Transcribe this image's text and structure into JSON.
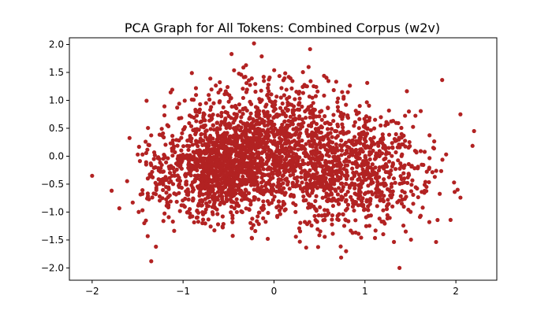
{
  "chart_data": {
    "type": "scatter",
    "title": "PCA Graph for All Tokens: Combined Corpus (w2v)",
    "xlabel": "",
    "ylabel": "",
    "xlim": [
      -2.25,
      2.45
    ],
    "ylim": [
      -2.22,
      2.12
    ],
    "xticks": [
      -2,
      -1,
      0,
      1,
      2
    ],
    "yticks": [
      -2.0,
      -1.5,
      -1.0,
      -0.5,
      0.0,
      0.5,
      1.0,
      1.5,
      2.0
    ],
    "xtick_labels": [
      "−2",
      "−1",
      "0",
      "1",
      "2"
    ],
    "ytick_labels": [
      "−2.0",
      "−1.5",
      "−1.0",
      "−0.5",
      "0.0",
      "0.5",
      "1.0",
      "1.5",
      "2.0"
    ],
    "grid": false,
    "legend": "none",
    "marker_color": "#b22222",
    "n_points": 2900,
    "cluster_weights": [
      0.42,
      0.33,
      0.25
    ],
    "clusters": [
      {
        "cx": -0.55,
        "cy": -0.15,
        "sx": 0.38,
        "sy": 0.45,
        "rho": 0.15
      },
      {
        "cx": 0.85,
        "cy": -0.25,
        "sx": 0.45,
        "sy": 0.55,
        "rho": 0.0
      },
      {
        "cx": -0.05,
        "cy": 0.3,
        "sx": 0.45,
        "sy": 0.55,
        "rho": 0.0
      }
    ],
    "fixed_points": [
      {
        "x": 2.2,
        "y": 0.45
      },
      {
        "x": 2.05,
        "y": 0.75
      },
      {
        "x": -2.0,
        "y": -0.35
      },
      {
        "x": 1.38,
        "y": -2.0
      },
      {
        "x": -0.22,
        "y": 2.02
      },
      {
        "x": -1.35,
        "y": -1.88
      },
      {
        "x": 1.98,
        "y": -0.47
      }
    ],
    "x_range": [
      -2.0,
      2.2
    ],
    "y_range": [
      -2.0,
      2.02
    ]
  }
}
